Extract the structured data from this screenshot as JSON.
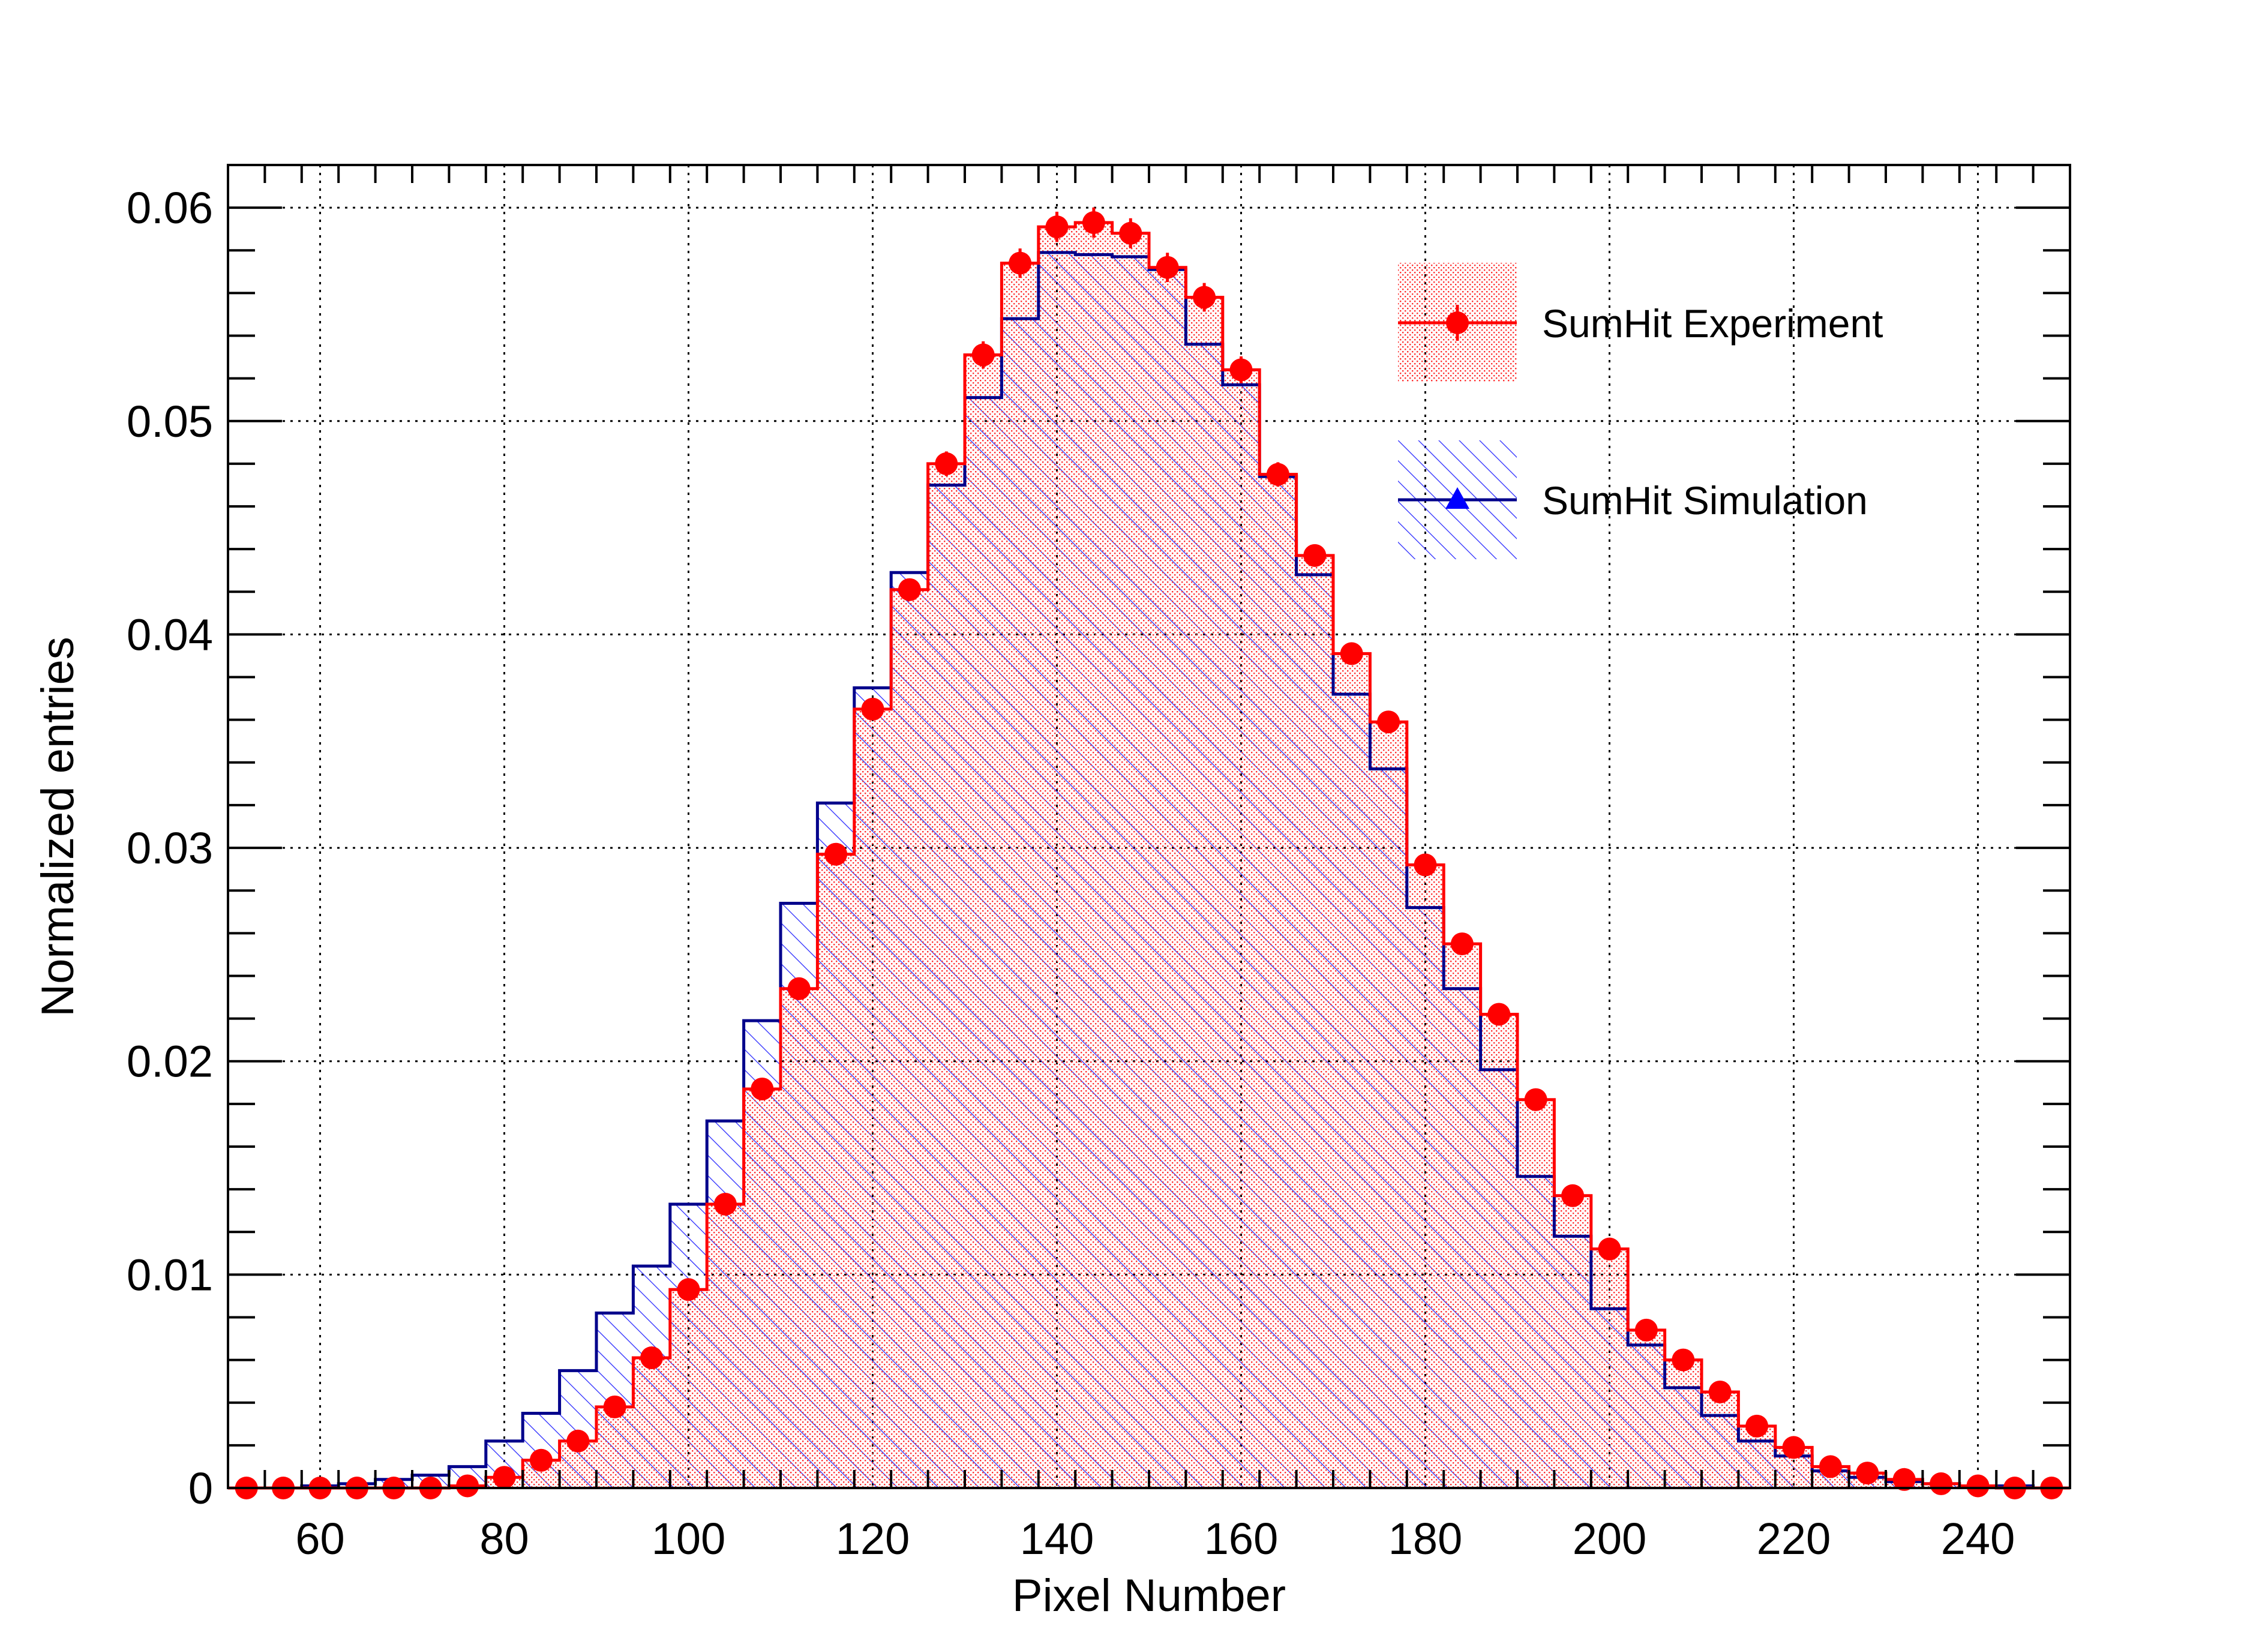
{
  "chart_data": {
    "type": "bar",
    "title": "",
    "xlabel": "Pixel Number",
    "ylabel": "Normalized entries",
    "xlim": [
      50,
      250
    ],
    "ylim": [
      0,
      0.062
    ],
    "grid": true,
    "legend_position": "top-right",
    "bin_width": 4,
    "x_ticks": [
      60,
      80,
      100,
      120,
      140,
      160,
      180,
      200,
      220,
      240
    ],
    "x_tick_labels": [
      "60",
      "80",
      "100",
      "120",
      "140",
      "160",
      "180",
      "200",
      "220",
      "240"
    ],
    "y_ticks": [
      0,
      0.01,
      0.02,
      0.03,
      0.04,
      0.05,
      0.06
    ],
    "y_tick_labels": [
      "0",
      "0.01",
      "0.02",
      "0.03",
      "0.04",
      "0.05",
      "0.06"
    ],
    "x": [
      52,
      56,
      60,
      64,
      68,
      72,
      76,
      80,
      84,
      88,
      92,
      96,
      100,
      104,
      108,
      112,
      116,
      120,
      124,
      128,
      132,
      136,
      140,
      144,
      148,
      152,
      156,
      160,
      164,
      168,
      172,
      176,
      180,
      184,
      188,
      192,
      196,
      200,
      204,
      208,
      212,
      216,
      220,
      224,
      228,
      232,
      236,
      240,
      244,
      248
    ],
    "series": [
      {
        "name": "SumHit Experiment",
        "style": "points-with-errors-and-dotted-fill",
        "color": "#ff0000",
        "values": [
          0.0,
          0.0,
          0.0,
          0.0,
          0.0,
          0.0,
          0.0001,
          0.0005,
          0.0013,
          0.0022,
          0.0038,
          0.0061,
          0.0093,
          0.0133,
          0.0187,
          0.0234,
          0.0297,
          0.0365,
          0.0421,
          0.048,
          0.0531,
          0.0574,
          0.0591,
          0.0593,
          0.0588,
          0.0572,
          0.0558,
          0.0524,
          0.0475,
          0.0437,
          0.0391,
          0.0359,
          0.0292,
          0.0255,
          0.0222,
          0.0182,
          0.0137,
          0.0112,
          0.0074,
          0.006,
          0.0045,
          0.0029,
          0.0019,
          0.001,
          0.0007,
          0.0004,
          0.0002,
          0.0001,
          0.0,
          0.0
        ]
      },
      {
        "name": "SumHit Simulation",
        "style": "step-with-hatched-fill",
        "color": "#00008b",
        "hatch_color": "#3333ff",
        "values": [
          0.0,
          0.0,
          0.0001,
          0.0002,
          0.0004,
          0.0006,
          0.001,
          0.0022,
          0.0035,
          0.0055,
          0.0082,
          0.0104,
          0.0133,
          0.0172,
          0.0219,
          0.0274,
          0.0321,
          0.0375,
          0.0429,
          0.047,
          0.0511,
          0.0548,
          0.0579,
          0.0578,
          0.0577,
          0.0571,
          0.0536,
          0.0517,
          0.0474,
          0.0428,
          0.0372,
          0.0337,
          0.0272,
          0.0234,
          0.0196,
          0.0146,
          0.0118,
          0.0084,
          0.0067,
          0.0047,
          0.0034,
          0.0022,
          0.0015,
          0.0008,
          0.0005,
          0.0003,
          0.0002,
          0.0001,
          0.0001,
          0.0
        ]
      }
    ]
  }
}
